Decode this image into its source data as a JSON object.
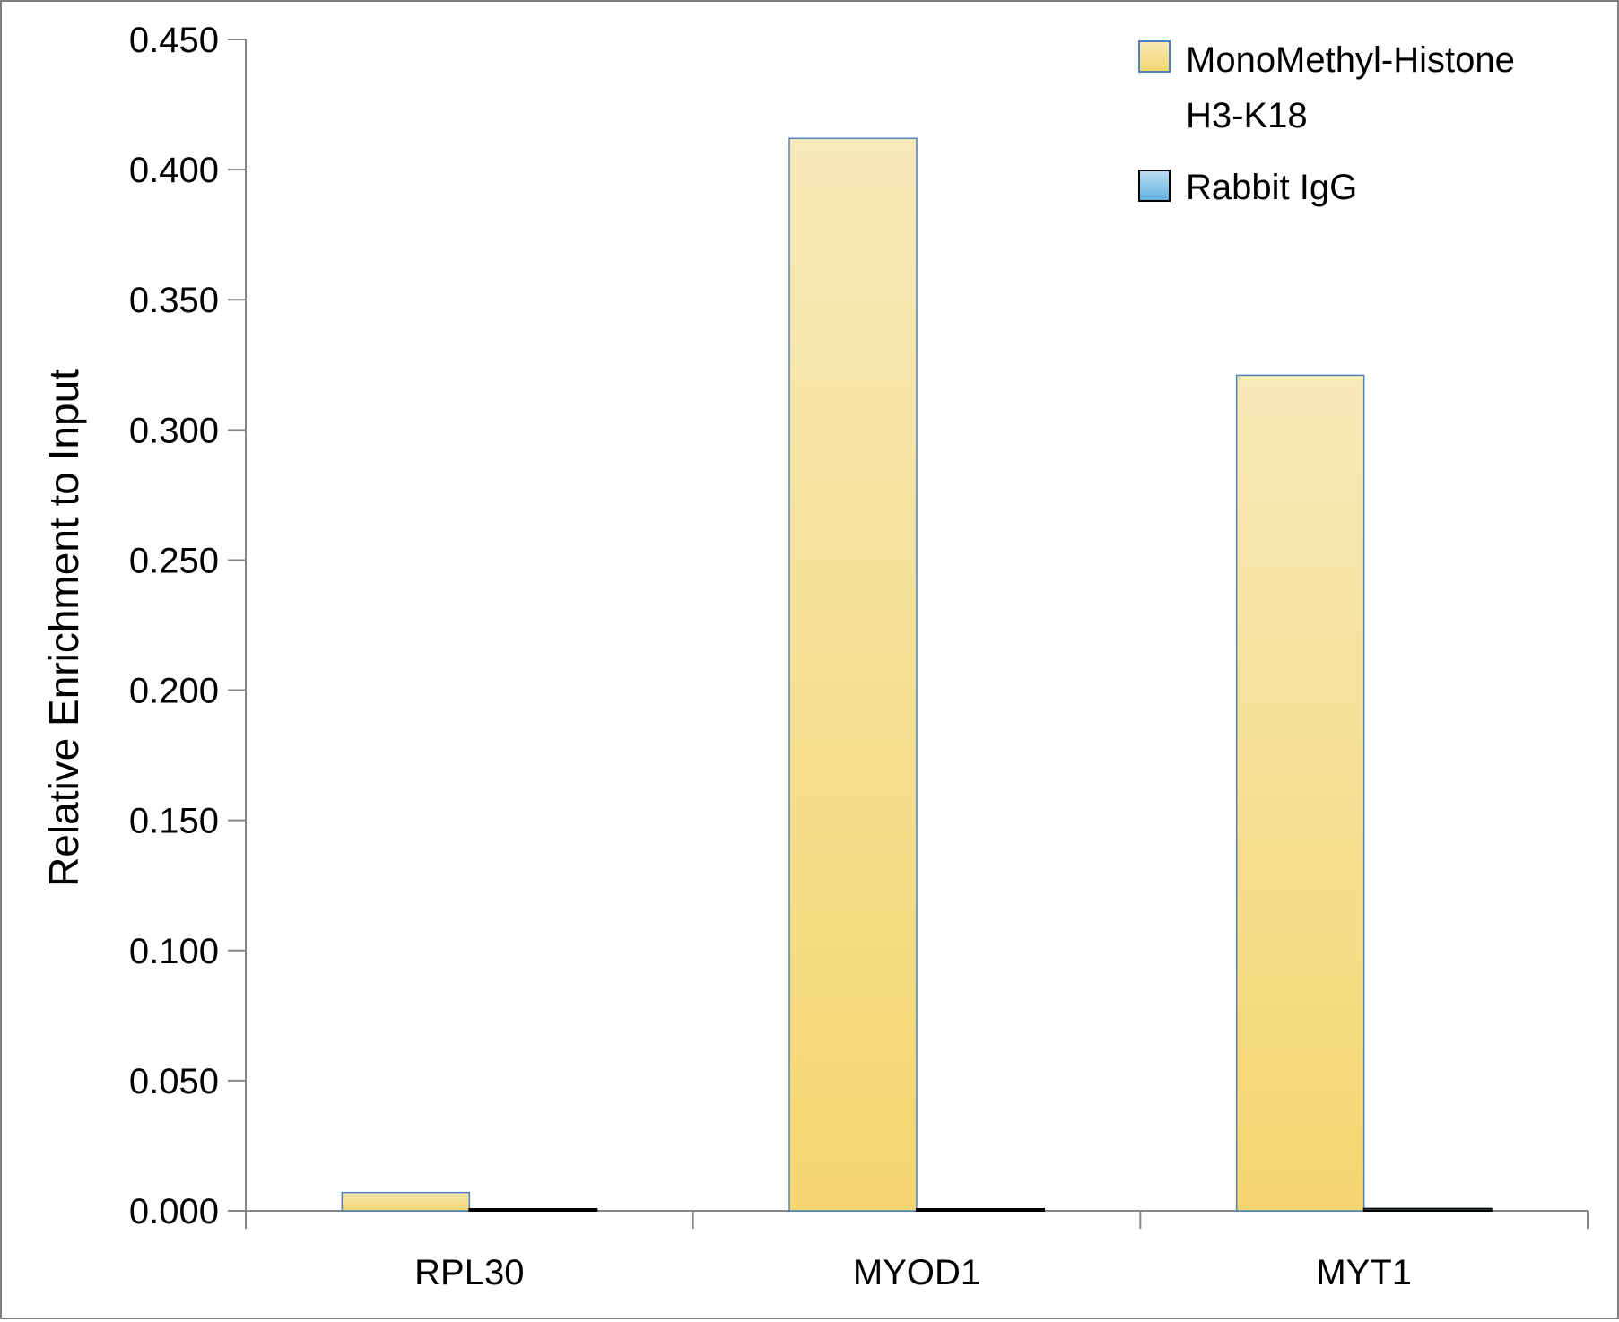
{
  "chart_data": {
    "type": "bar",
    "title": "",
    "xlabel": "",
    "ylabel": "Relative Enrichment to Input",
    "ylim": [
      0,
      0.45
    ],
    "yticks": [
      "0.000",
      "0.050",
      "0.100",
      "0.150",
      "0.200",
      "0.250",
      "0.300",
      "0.350",
      "0.400",
      "0.450"
    ],
    "categories": [
      "RPL30",
      "MYOD1",
      "MYT1"
    ],
    "series": [
      {
        "name": "MonoMethyl-Histone H3-K18",
        "legend_lines": [
          "MonoMethyl-Histone",
          "H3-K18"
        ],
        "values": [
          0.007,
          0.412,
          0.321
        ],
        "color_top": "#f7e9b8",
        "color_bottom": "#f5d66f",
        "stroke": "#4f81bd"
      },
      {
        "name": "Rabbit IgG",
        "legend_lines": [
          "Rabbit IgG"
        ],
        "values": [
          0.0006,
          0.0006,
          0.0008
        ],
        "color_top": "#bcdff2",
        "color_bottom": "#5fb0de",
        "stroke": "#000000"
      }
    ],
    "grid": false,
    "legend_position": "top-right"
  }
}
